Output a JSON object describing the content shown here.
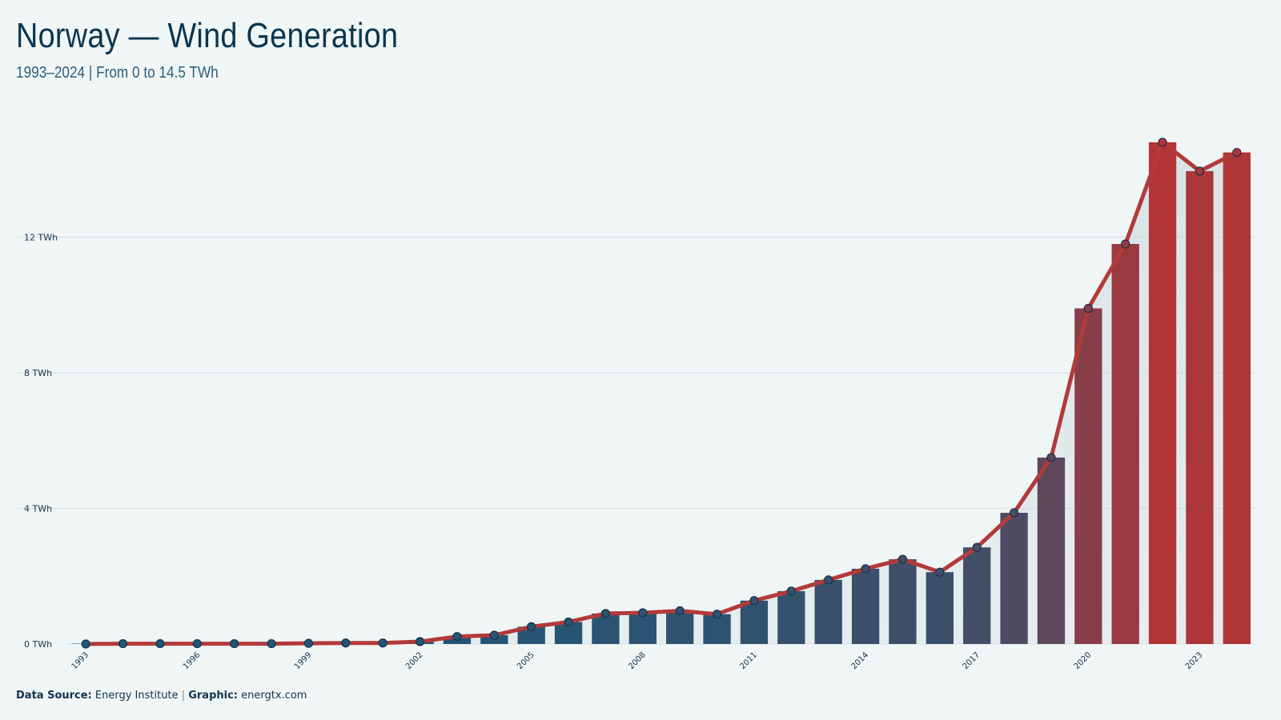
{
  "title": "Norway — Wind Generation",
  "subtitle": "1993–2024 | From 0 to 14.5 TWh",
  "footer": {
    "source_label": "Data Source:",
    "source_value": "Energy Institute",
    "separator": "|",
    "graphic_label": "Graphic:",
    "graphic_value": "energtx.com"
  },
  "colors": {
    "bar_start": "#1e5677",
    "bar_end": "#b33436",
    "line": "#b33a3a",
    "grid": "#d8e1e3",
    "text": "#0e3450"
  },
  "chart_data": {
    "type": "bar",
    "title": "Norway — Wind Generation",
    "subtitle": "1993–2024 | From 0 to 14.5 TWh",
    "xlabel": "",
    "ylabel": "",
    "unit": "TWh",
    "ylim": [
      0,
      15
    ],
    "yticks": [
      0,
      4,
      8,
      12
    ],
    "ytick_labels": [
      "0 TWh",
      "4 TWh",
      "8 TWh",
      "12 TWh"
    ],
    "xtick_labels": [
      "1993",
      "1996",
      "1999",
      "2002",
      "2005",
      "2008",
      "2011",
      "2014",
      "2017",
      "2020",
      "2023"
    ],
    "grid": true,
    "categories": [
      1993,
      1994,
      1995,
      1996,
      1997,
      1998,
      1999,
      2000,
      2001,
      2002,
      2003,
      2004,
      2005,
      2006,
      2007,
      2008,
      2009,
      2010,
      2011,
      2012,
      2013,
      2014,
      2015,
      2016,
      2017,
      2018,
      2019,
      2020,
      2021,
      2022,
      2023,
      2024
    ],
    "series": [
      {
        "values": [
          0.0,
          0.01,
          0.01,
          0.01,
          0.01,
          0.01,
          0.02,
          0.03,
          0.03,
          0.07,
          0.22,
          0.26,
          0.51,
          0.65,
          0.9,
          0.92,
          0.98,
          0.88,
          1.28,
          1.56,
          1.89,
          2.22,
          2.5,
          2.12,
          2.85,
          3.87,
          5.5,
          9.9,
          11.8,
          14.8,
          13.95,
          14.5
        ]
      }
    ],
    "overlay": "line-with-markers"
  }
}
